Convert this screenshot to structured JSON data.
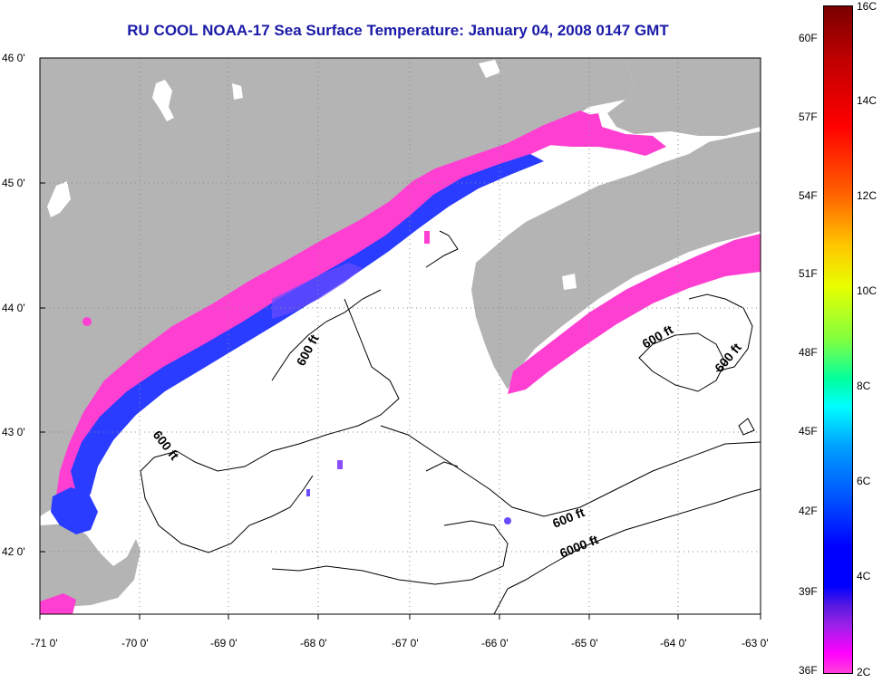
{
  "title": "RU COOL  NOAA-17  Sea Surface Temperature:  January 04, 2008 0147 GMT",
  "lat_labels": [
    "46 0'",
    "45 0'",
    "44 0'",
    "43 0'",
    "42 0'"
  ],
  "lon_labels": [
    "-71 0'",
    "-70 0'",
    "-69 0'",
    "-68 0'",
    "-67 0'",
    "-66 0'",
    "-65 0'",
    "-64 0'",
    "-63 0'"
  ],
  "contour_labels": [
    "600 ft",
    "600 ft",
    "600 ft",
    "600 ft",
    "600 ft",
    "6000 ft"
  ],
  "colorbar": {
    "fahrenheit_labels": [
      "60F",
      "57F",
      "54F",
      "51F",
      "48F",
      "45F",
      "42F",
      "39F",
      "36F"
    ],
    "celsius_labels": [
      "16C",
      "14C",
      "12C",
      "10C",
      "8C",
      "6C",
      "4C",
      "2C"
    ]
  },
  "colors": {
    "land": "#b4b4b4",
    "cloud_mask": "#ffffff",
    "title": "#1a1aa8",
    "sst_cold_pink": "#ff3fd2",
    "sst_blue": "#2a3cff"
  }
}
